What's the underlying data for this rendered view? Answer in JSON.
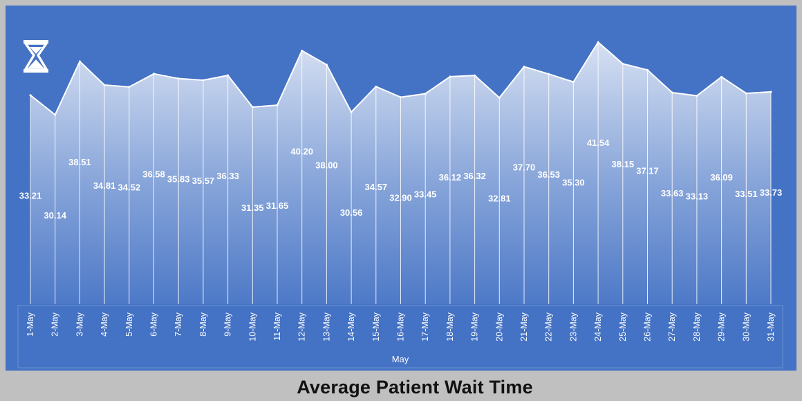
{
  "title": "Average Patient Wait Time",
  "icon": "hourglass-icon",
  "colors": {
    "panel": "#4472c4",
    "page_bg": "#c0c0c0",
    "line": "#ffffff",
    "label": "#ffffff"
  },
  "chart_data": {
    "type": "area",
    "title": "Average Patient Wait Time",
    "xlabel": "May",
    "ylabel": "",
    "categories": [
      "1-May",
      "2-May",
      "3-May",
      "4-May",
      "5-May",
      "6-May",
      "7-May",
      "8-May",
      "9-May",
      "10-May",
      "11-May",
      "12-May",
      "13-May",
      "14-May",
      "15-May",
      "16-May",
      "17-May",
      "18-May",
      "19-May",
      "20-May",
      "21-May",
      "22-May",
      "23-May",
      "24-May",
      "25-May",
      "26-May",
      "27-May",
      "28-May",
      "29-May",
      "30-May",
      "31-May"
    ],
    "values": [
      33.21,
      30.14,
      38.51,
      34.81,
      34.52,
      36.58,
      35.83,
      35.57,
      36.33,
      31.35,
      31.65,
      40.2,
      38.0,
      30.56,
      34.57,
      32.9,
      33.45,
      36.12,
      36.32,
      32.81,
      37.7,
      36.53,
      35.3,
      41.54,
      38.15,
      37.17,
      33.63,
      33.13,
      36.09,
      33.51,
      33.73
    ],
    "labels": [
      "33.21",
      "30.14",
      "38.51",
      "34.81",
      "34.52",
      "36.58",
      "35.83",
      "35.57",
      "36.33",
      "31.35",
      "31.65",
      "40.20",
      "38.00",
      "30.56",
      "34.57",
      "32.90",
      "33.45",
      "36.12",
      "36.32",
      "32.81",
      "37.70",
      "36.53",
      "35.30",
      "41.54",
      "38.15",
      "37.17",
      "33.63",
      "33.13",
      "36.09",
      "33.51",
      "33.73"
    ],
    "grid": false,
    "legend": "none"
  }
}
